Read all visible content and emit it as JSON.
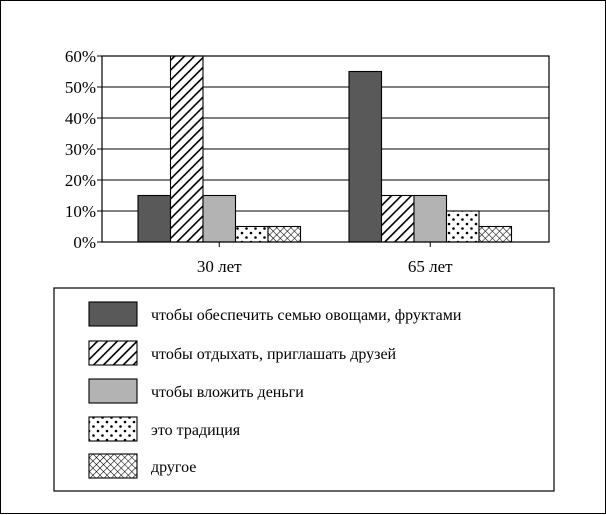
{
  "chart_data": {
    "type": "bar",
    "categories": [
      "30 лет",
      "65 лет"
    ],
    "ylim": [
      0,
      60
    ],
    "yticks": [
      "0%",
      "10%",
      "20%",
      "30%",
      "40%",
      "50%",
      "60%"
    ],
    "y_unit": "%",
    "grid": "horizontal",
    "legend_position": "bottom",
    "series": [
      {
        "name": "чтобы обеспечить семью овощами, фруктами",
        "values": [
          15,
          55
        ],
        "fill": "dark-gray",
        "color": "#595959"
      },
      {
        "name": "чтобы отдыхать, приглашать друзей",
        "values": [
          60,
          15
        ],
        "fill": "diagonal-hatch",
        "color": "#000000"
      },
      {
        "name": "чтобы вложить деньги",
        "values": [
          15,
          15
        ],
        "fill": "light-gray",
        "color": "#b3b3b3"
      },
      {
        "name": "это традиция",
        "values": [
          5,
          10
        ],
        "fill": "dots",
        "color": "#000000"
      },
      {
        "name": "другое",
        "values": [
          5,
          5
        ],
        "fill": "crosshatch",
        "color": "#000000"
      }
    ]
  }
}
